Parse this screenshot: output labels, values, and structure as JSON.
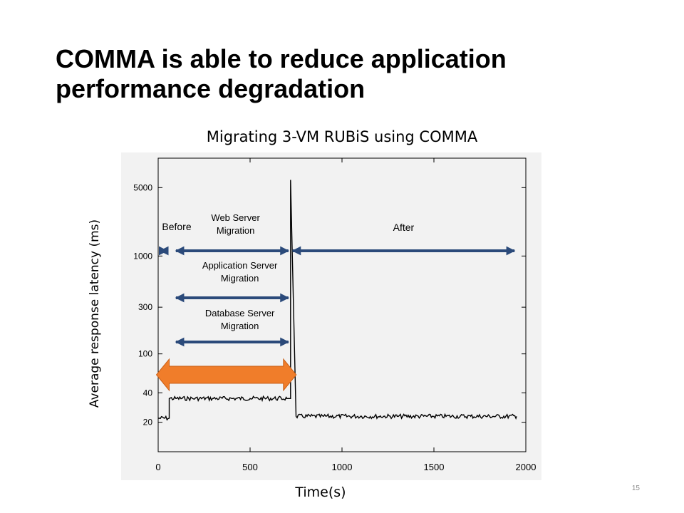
{
  "slide": {
    "title": "COMMA is able to reduce application performance degradation",
    "page_number": "15"
  },
  "chart_data": {
    "type": "line",
    "title": "Migrating 3-VM RUBiS using COMMA",
    "xlabel": "Time(s)",
    "ylabel": "Average response latency (ms)",
    "y_scale": "log",
    "xlim": [
      0,
      2000
    ],
    "ylim": [
      10,
      10000
    ],
    "x_ticks": [
      0,
      500,
      1000,
      1500,
      2000
    ],
    "y_ticks": [
      20,
      40,
      100,
      300,
      1000,
      5000
    ],
    "grid": false,
    "series": [
      {
        "color": "#000000",
        "x": [
          0,
          60,
          60,
          100,
          200,
          300,
          400,
          500,
          600,
          700,
          720,
          720,
          750,
          900,
          1100,
          1300,
          1500,
          1700,
          1950
        ],
        "y": [
          22,
          22,
          35,
          35,
          35,
          35,
          35,
          35,
          35,
          35,
          35,
          6000,
          23,
          23,
          23,
          23,
          23,
          23,
          23
        ]
      }
    ],
    "annotations": [
      {
        "text": "Before",
        "x_from": 0,
        "x_to": 60
      },
      {
        "text": "Web Server Migration",
        "x_from": 60,
        "x_to": 720
      },
      {
        "text": "After",
        "x_from": 720,
        "x_to": 1950
      },
      {
        "text": "Application Server Migration",
        "x_from": 60,
        "x_to": 720
      },
      {
        "text": "Database Server Migration",
        "x_from": 60,
        "x_to": 720
      }
    ],
    "highlight_arrow": {
      "x_from": 60,
      "x_to": 720,
      "color": "#f07d2a"
    },
    "arrow_color": "#2b4a7a"
  }
}
